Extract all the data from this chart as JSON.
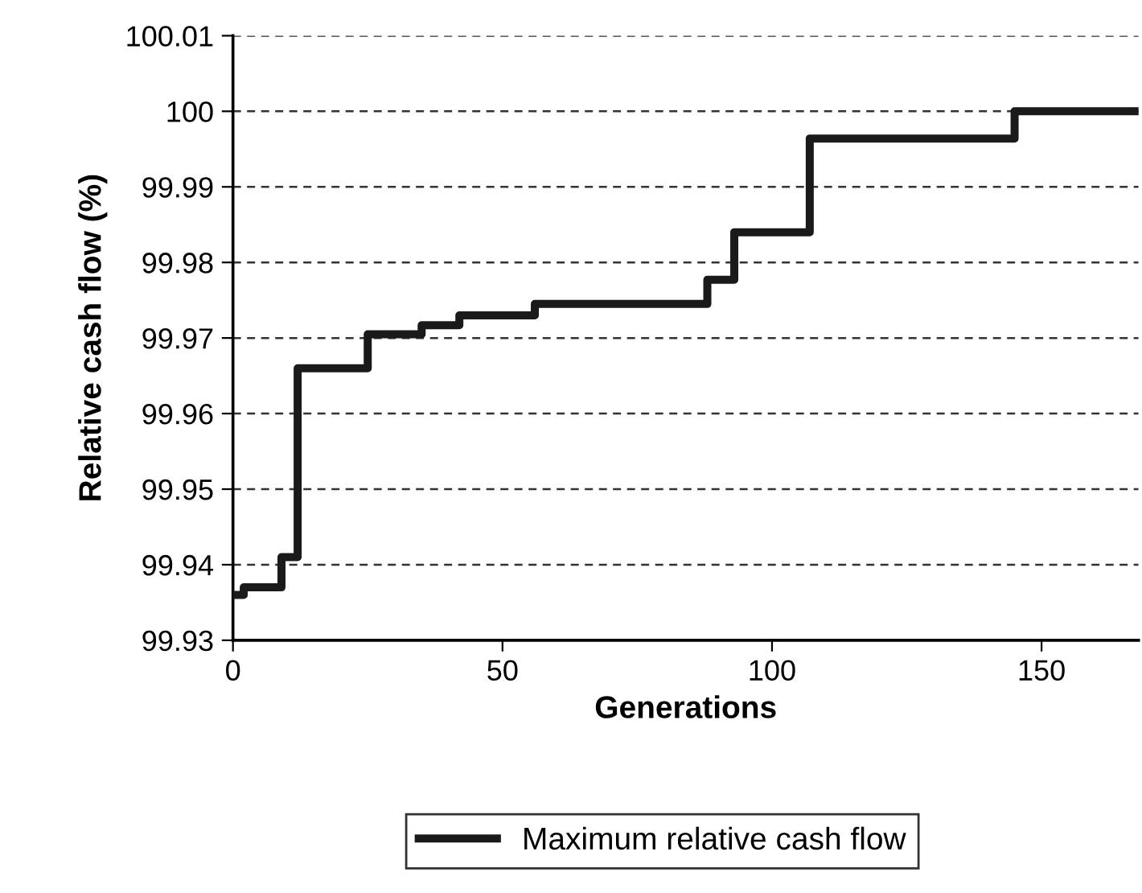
{
  "chart_data": {
    "type": "step",
    "xlabel": "Generations",
    "ylabel": "Relative cash flow (%)",
    "series": [
      {
        "name": "Maximum relative cash flow",
        "color": "#1a1a1a",
        "x": [
          0,
          2,
          9,
          12,
          25,
          35,
          42,
          56,
          88,
          93,
          107,
          145,
          168
        ],
        "values": [
          99.936,
          99.937,
          99.941,
          99.966,
          99.9705,
          99.9717,
          99.973,
          99.9745,
          99.9777,
          99.984,
          99.9964,
          100,
          100
        ]
      }
    ],
    "xlim": [
      0,
      168
    ],
    "xticks": [
      0,
      50,
      100,
      150
    ],
    "ylim": [
      99.93,
      100.01
    ],
    "yticks": [
      99.93,
      99.94,
      99.95,
      99.96,
      99.97,
      99.98,
      99.99,
      100,
      100.01
    ],
    "grid": "y",
    "legend": "bottom",
    "line_style": "solid",
    "marker": "none"
  }
}
